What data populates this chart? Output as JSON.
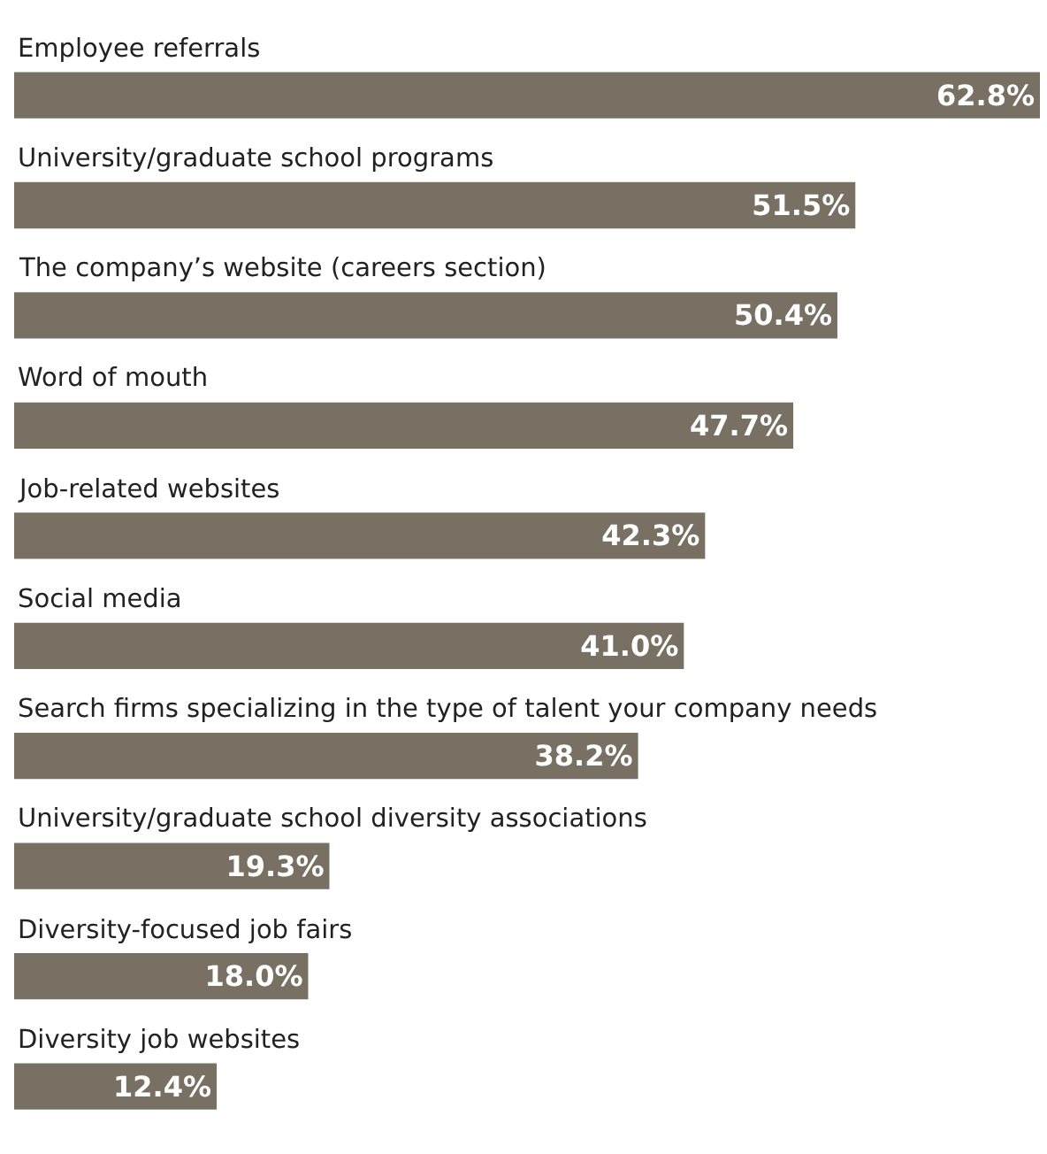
{
  "chart_data": {
    "type": "bar",
    "orientation": "horizontal",
    "categories": [
      "Employee referrals",
      "University/graduate school programs",
      "The company’s website (careers section)",
      "Word of mouth",
      "Job-related websites",
      "Social media",
      "Search firms specializing in the type of talent your company needs",
      "University/graduate school diversity associations",
      "Diversity-focused job fairs",
      "Diversity job websites"
    ],
    "values": [
      62.8,
      51.5,
      50.4,
      47.7,
      42.3,
      41.0,
      38.2,
      19.3,
      18.0,
      12.4
    ],
    "value_labels": [
      "62.8%",
      "51.5%",
      "50.4%",
      "47.7%",
      "42.3%",
      "41.0%",
      "38.2%",
      "19.3%",
      "18.0%",
      "12.4%"
    ],
    "color": "#797064",
    "xlim": [
      0,
      62.8
    ],
    "tick_labels": false,
    "legend": false
  }
}
